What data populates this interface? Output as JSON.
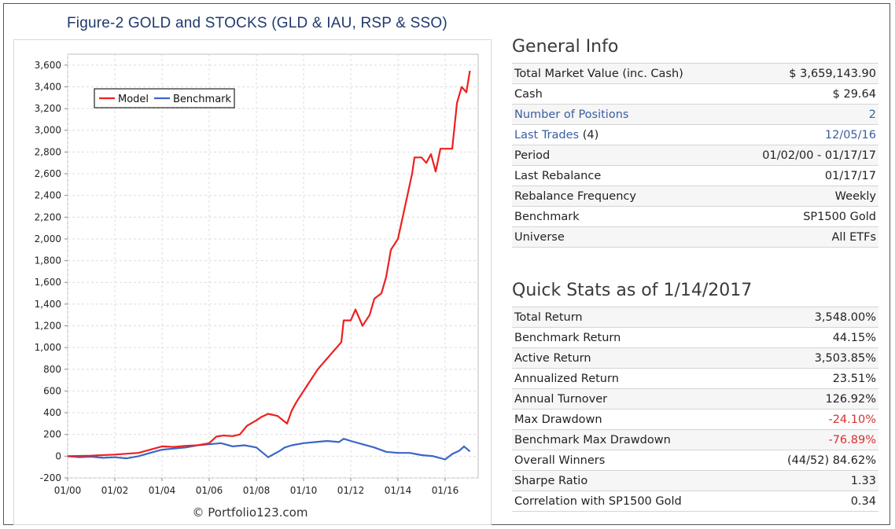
{
  "figure_title": "Figure-2 GOLD and STOCKS (GLD & IAU, RSP & SSO)",
  "watermark": "© Portfolio123.com",
  "colors": {
    "model": "#ee2020",
    "benchmark": "#3a66c8",
    "title": "#1f3a6e",
    "negative": "#d83030",
    "link": "#3b5ea0"
  },
  "chart_data": {
    "type": "line",
    "title": "",
    "xlabel": "",
    "ylabel": "",
    "ylim": [
      -200,
      3700
    ],
    "yticks": [
      -200,
      0,
      200,
      400,
      600,
      800,
      1000,
      1200,
      1400,
      1600,
      1800,
      2000,
      2200,
      2400,
      2600,
      2800,
      3000,
      3200,
      3400,
      3600
    ],
    "ytick_labels": [
      "-200",
      "0",
      "200",
      "400",
      "600",
      "800",
      "1,000",
      "1,200",
      "1,400",
      "1,600",
      "1,800",
      "2,000",
      "2,200",
      "2,400",
      "2,600",
      "2,800",
      "3,000",
      "3,200",
      "3,400",
      "3,600"
    ],
    "xlim": [
      2000.0,
      2017.4
    ],
    "xticks": [
      2000,
      2002,
      2004,
      2006,
      2008,
      2010,
      2012,
      2014,
      2016
    ],
    "xtick_labels": [
      "01/00",
      "01/02",
      "01/04",
      "01/06",
      "01/08",
      "01/10",
      "01/12",
      "01/14",
      "01/16"
    ],
    "grid": true,
    "legend": "top-left",
    "series": [
      {
        "name": "Model",
        "color": "#ee2020",
        "x": [
          2000.0,
          2001.0,
          2002.0,
          2003.0,
          2003.5,
          2004.0,
          2004.5,
          2005.0,
          2005.5,
          2006.0,
          2006.3,
          2006.6,
          2007.0,
          2007.3,
          2007.6,
          2008.0,
          2008.2,
          2008.5,
          2008.9,
          2009.3,
          2009.5,
          2009.7,
          2010.0,
          2010.3,
          2010.6,
          2011.0,
          2011.4,
          2011.6,
          2011.7,
          2012.0,
          2012.2,
          2012.5,
          2012.8,
          2013.0,
          2013.3,
          2013.5,
          2013.7,
          2014.0,
          2014.2,
          2014.4,
          2014.6,
          2014.7,
          2015.0,
          2015.2,
          2015.4,
          2015.6,
          2015.8,
          2016.0,
          2016.3,
          2016.5,
          2016.7,
          2016.9,
          2017.05
        ],
        "y": [
          0,
          5,
          15,
          30,
          60,
          90,
          85,
          95,
          100,
          120,
          180,
          190,
          185,
          200,
          280,
          330,
          360,
          390,
          370,
          300,
          420,
          500,
          600,
          700,
          800,
          900,
          1000,
          1050,
          1250,
          1250,
          1350,
          1200,
          1300,
          1450,
          1500,
          1650,
          1900,
          2000,
          2200,
          2400,
          2600,
          2750,
          2750,
          2700,
          2780,
          2620,
          2830,
          2830,
          2830,
          3250,
          3400,
          3350,
          3548
        ]
      },
      {
        "name": "Benchmark",
        "color": "#3a66c8",
        "x": [
          2000.0,
          2000.5,
          2001.0,
          2001.5,
          2002.0,
          2002.5,
          2003.0,
          2003.5,
          2004.0,
          2004.5,
          2005.0,
          2005.5,
          2006.0,
          2006.5,
          2007.0,
          2007.5,
          2008.0,
          2008.5,
          2009.0,
          2009.2,
          2009.5,
          2010.0,
          2010.5,
          2011.0,
          2011.5,
          2011.7,
          2012.0,
          2012.5,
          2013.0,
          2013.5,
          2014.0,
          2014.5,
          2015.0,
          2015.5,
          2016.0,
          2016.3,
          2016.6,
          2016.8,
          2017.05
        ],
        "y": [
          0,
          -10,
          -5,
          -15,
          -10,
          -20,
          0,
          30,
          60,
          70,
          80,
          100,
          110,
          120,
          90,
          100,
          80,
          -10,
          50,
          80,
          100,
          120,
          130,
          140,
          130,
          160,
          140,
          110,
          80,
          40,
          30,
          30,
          10,
          0,
          -30,
          20,
          50,
          90,
          44
        ]
      }
    ]
  },
  "general_info": {
    "heading": "General Info",
    "rows": [
      {
        "label": "Total Market Value (inc. Cash)",
        "value": "$ 3,659,143.90"
      },
      {
        "label": "Cash",
        "value": "$ 29.64"
      },
      {
        "label": "Number of Positions",
        "value": "2"
      },
      {
        "label": "Last Trades",
        "label_suffix": "(4)",
        "value": "12/05/16"
      },
      {
        "label": "Period",
        "value": "01/02/00 - 01/17/17"
      },
      {
        "label": "Last Rebalance",
        "value": "01/17/17"
      },
      {
        "label": "Rebalance Frequency",
        "value": "Weekly"
      },
      {
        "label": "Benchmark",
        "value": "SP1500 Gold"
      },
      {
        "label": "Universe",
        "value": "All ETFs"
      }
    ]
  },
  "quick_stats": {
    "heading": "Quick Stats as of 1/14/2017",
    "rows": [
      {
        "label": "Total Return",
        "value": "3,548.00%"
      },
      {
        "label": "Benchmark Return",
        "value": "44.15%"
      },
      {
        "label": "Active Return",
        "value": "3,503.85%"
      },
      {
        "label": "Annualized Return",
        "value": "23.51%"
      },
      {
        "label": "Annual Turnover",
        "value": "126.92%"
      },
      {
        "label": "Max Drawdown",
        "value": "-24.10%"
      },
      {
        "label": "Benchmark Max Drawdown",
        "value": "-76.89%"
      },
      {
        "label": "Overall Winners",
        "value": "(44/52) 84.62%"
      },
      {
        "label": "Sharpe Ratio",
        "value": "1.33"
      },
      {
        "label": "Correlation with SP1500 Gold",
        "value": "0.34"
      }
    ]
  }
}
